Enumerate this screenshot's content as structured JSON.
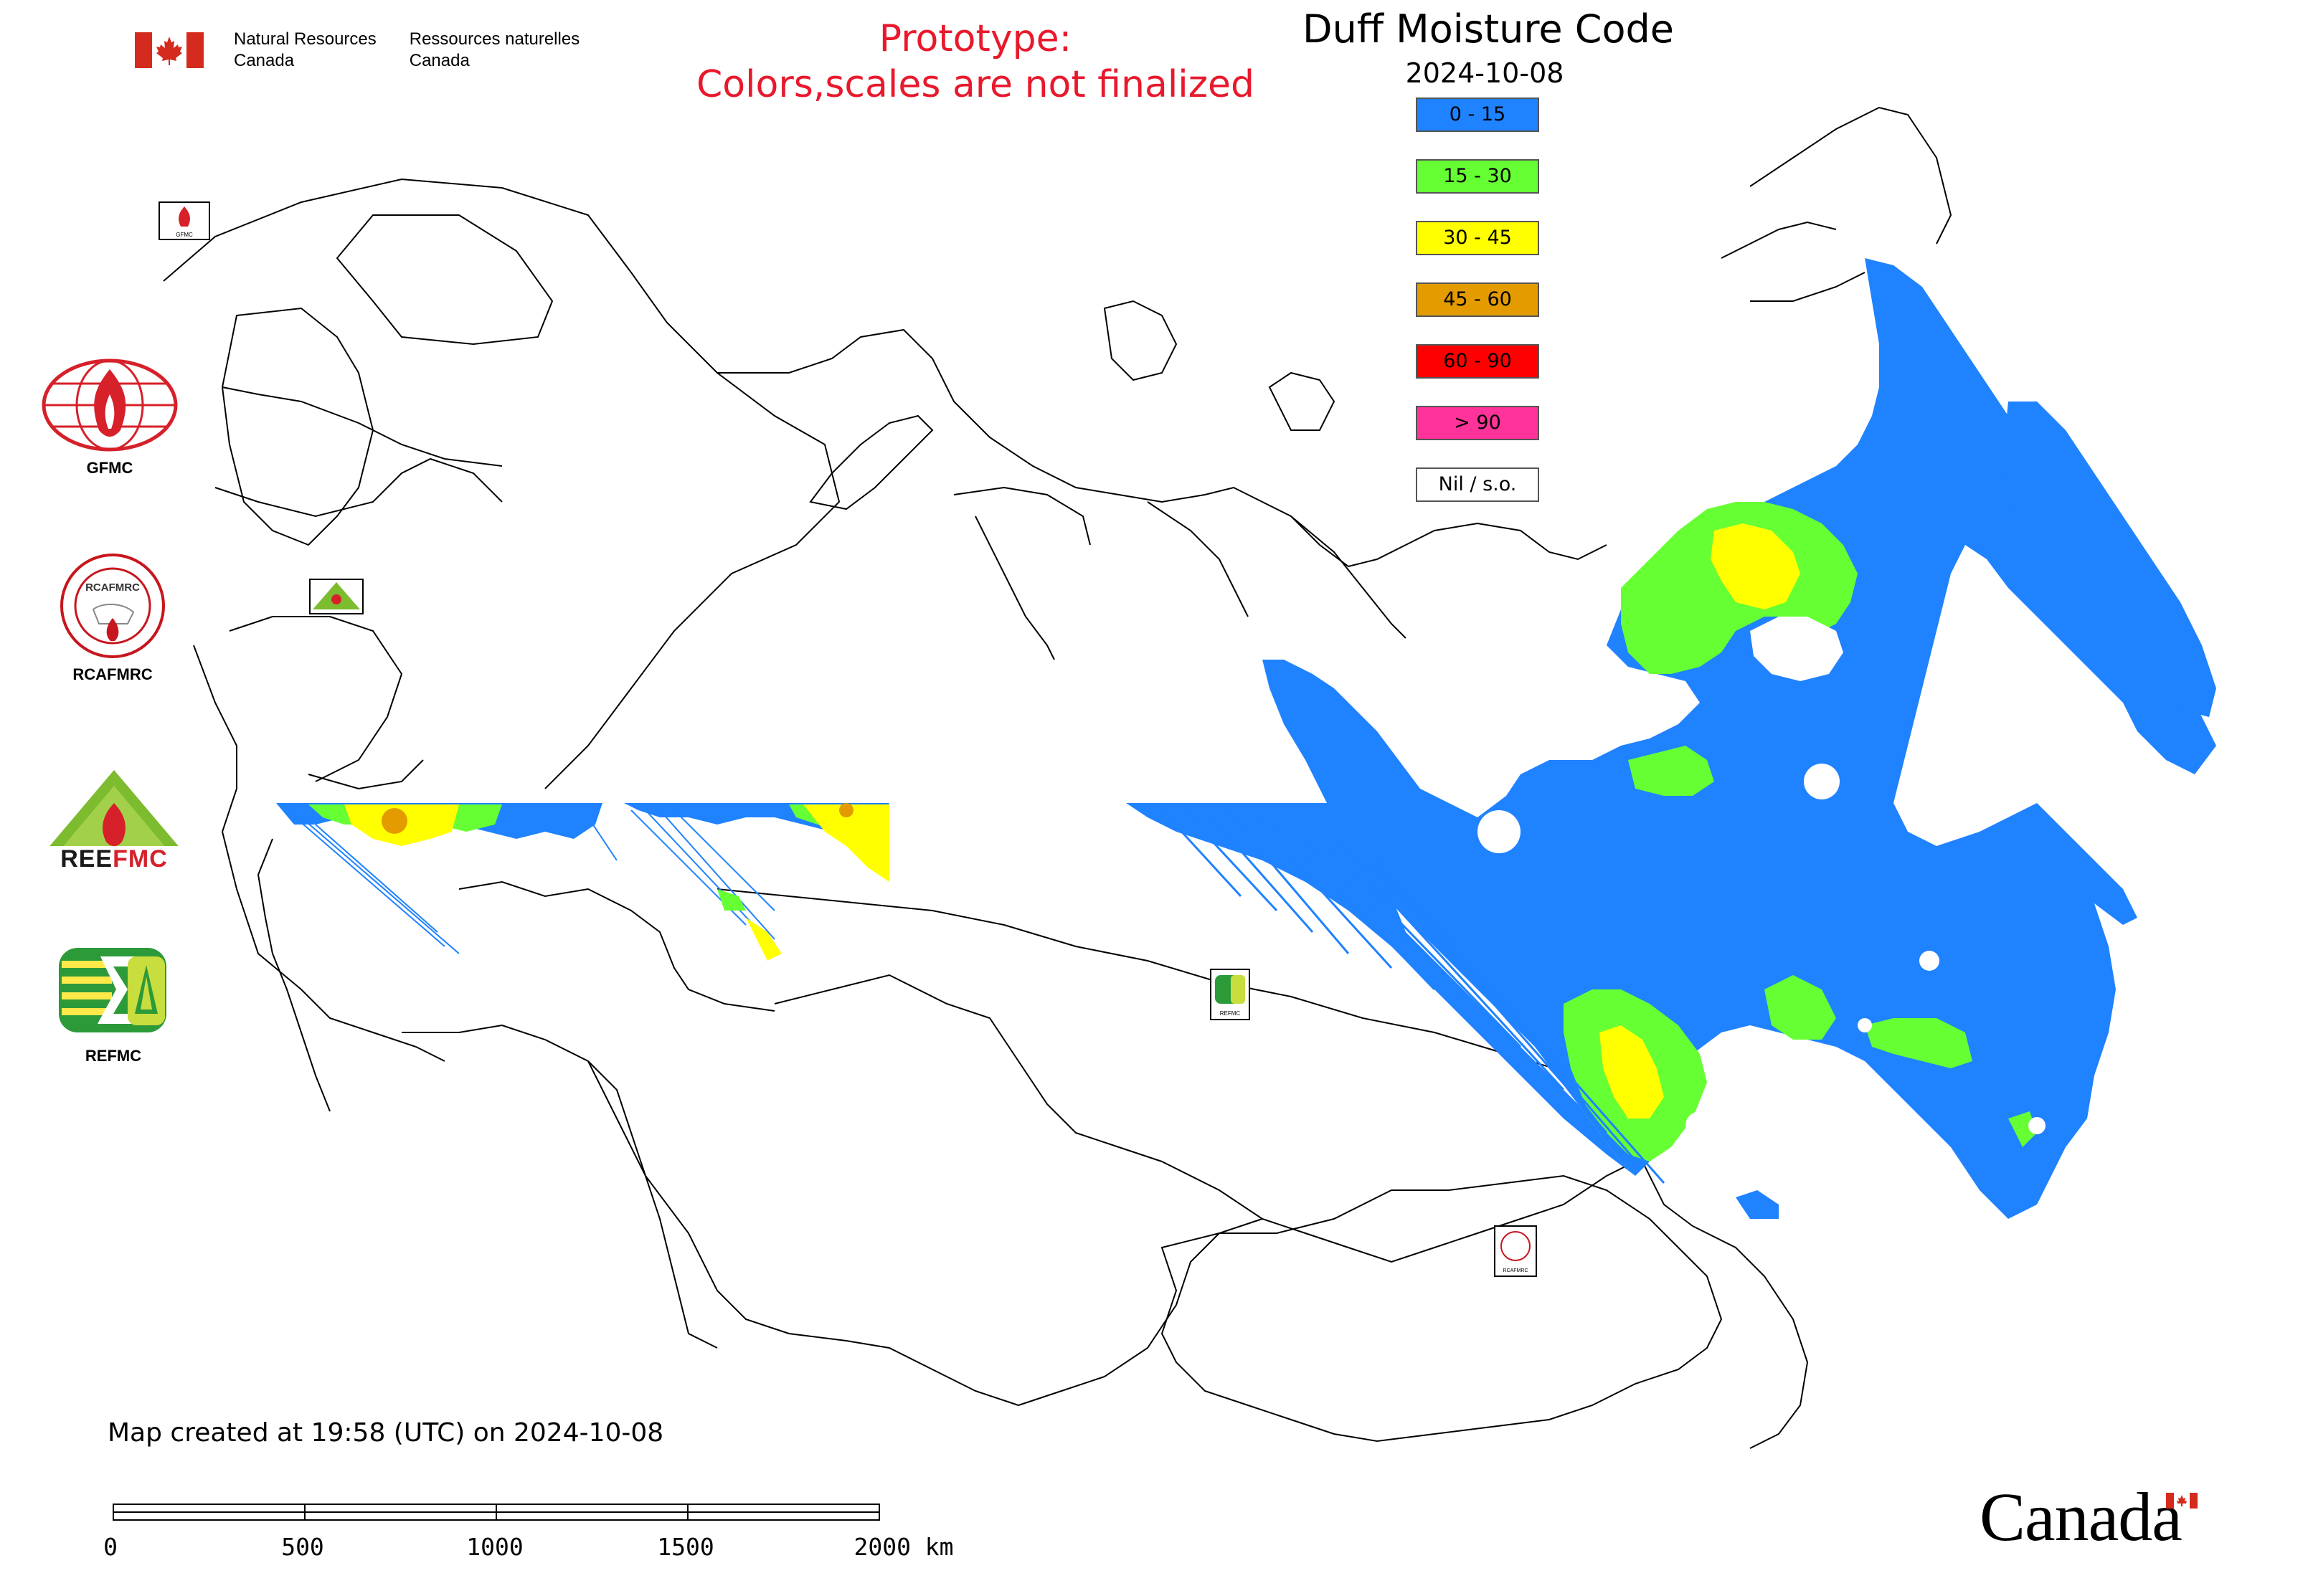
{
  "header": {
    "agency_en": [
      "Natural Resources",
      "Canada"
    ],
    "agency_fr": [
      "Ressources naturelles",
      "Canada"
    ],
    "prototype_line1": "Prototype:",
    "prototype_line2": "Colors,scales are not finalized",
    "title": "Duff Moisture Code",
    "date": "2024-10-08"
  },
  "legend": {
    "items": [
      {
        "label": "0 - 15",
        "color": "#1f82ff"
      },
      {
        "label": "15 - 30",
        "color": "#66ff33"
      },
      {
        "label": "30 - 45",
        "color": "#ffff00"
      },
      {
        "label": "45 - 60",
        "color": "#e39b00"
      },
      {
        "label": "60 - 90",
        "color": "#ff0000"
      },
      {
        "label": "> 90",
        "color": "#ff3399"
      },
      {
        "label": "Nil / s.o.",
        "color": "#ffffff"
      }
    ]
  },
  "side_logos": [
    {
      "label": "GFMC",
      "icon": "gfmc-logo-icon"
    },
    {
      "label": "RCAFMRC",
      "icon": "rcafmrc-logo-icon"
    },
    {
      "label": "REEFMC",
      "icon": "reefmc-logo-icon"
    },
    {
      "label": "REFMC",
      "icon": "refmc-logo-icon"
    }
  ],
  "map_markers": [
    {
      "label": "GFMC",
      "icon": "gfmc-marker-icon"
    },
    {
      "label": "REEFMC",
      "icon": "reefmc-marker-icon"
    },
    {
      "label": "REFMC",
      "icon": "refmc-marker-icon"
    },
    {
      "label": "RCAFMRC",
      "icon": "rcafmrc-marker-icon"
    }
  ],
  "footer": {
    "created": "Map created at 19:58 (UTC) on 2024-10-08",
    "scale_labels": [
      "0",
      "500",
      "1000",
      "1500",
      "2000 km"
    ],
    "wordmark": "Canada"
  }
}
